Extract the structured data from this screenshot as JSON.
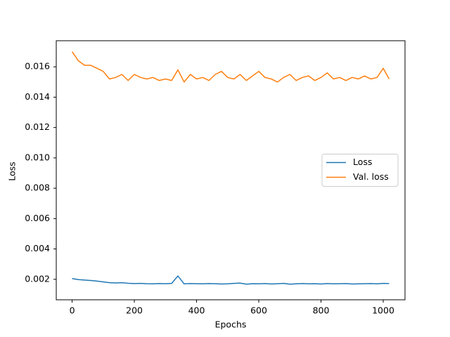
{
  "chart_data": {
    "type": "line",
    "xlabel": "Epochs",
    "ylabel": "Loss",
    "x": [
      0,
      20,
      40,
      60,
      80,
      100,
      120,
      140,
      160,
      180,
      200,
      220,
      240,
      260,
      280,
      300,
      320,
      340,
      360,
      380,
      400,
      420,
      440,
      460,
      480,
      500,
      520,
      540,
      560,
      580,
      600,
      620,
      640,
      660,
      680,
      700,
      720,
      740,
      760,
      780,
      800,
      820,
      840,
      860,
      880,
      900,
      920,
      940,
      960,
      980,
      1000,
      1019
    ],
    "series": [
      {
        "name": "Loss",
        "color": "#1f77b4",
        "values": [
          0.00205,
          0.00198,
          0.00195,
          0.00192,
          0.00188,
          0.00183,
          0.00178,
          0.00176,
          0.00178,
          0.00174,
          0.00172,
          0.00173,
          0.00171,
          0.0017,
          0.00172,
          0.00171,
          0.00173,
          0.00222,
          0.0017,
          0.00172,
          0.00171,
          0.0017,
          0.00172,
          0.00171,
          0.00169,
          0.0017,
          0.00173,
          0.00175,
          0.00168,
          0.00171,
          0.0017,
          0.00172,
          0.00169,
          0.00171,
          0.00173,
          0.00168,
          0.0017,
          0.00172,
          0.0017,
          0.00171,
          0.00169,
          0.00172,
          0.0017,
          0.00171,
          0.00172,
          0.00169,
          0.0017,
          0.00171,
          0.00172,
          0.0017,
          0.00173,
          0.00172
        ]
      },
      {
        "name": "Val. loss",
        "color": "#ff7f0e",
        "values": [
          0.017,
          0.0164,
          0.0161,
          0.0161,
          0.0159,
          0.0157,
          0.0152,
          0.0153,
          0.0155,
          0.0151,
          0.0155,
          0.0153,
          0.0152,
          0.0153,
          0.0151,
          0.0152,
          0.0151,
          0.0158,
          0.015,
          0.0155,
          0.0152,
          0.0153,
          0.0151,
          0.0155,
          0.0157,
          0.0153,
          0.0152,
          0.0155,
          0.0151,
          0.0154,
          0.0157,
          0.0153,
          0.0152,
          0.015,
          0.0153,
          0.0155,
          0.0151,
          0.0153,
          0.0154,
          0.0151,
          0.0153,
          0.0156,
          0.0152,
          0.0153,
          0.0151,
          0.0153,
          0.0152,
          0.0154,
          0.0152,
          0.0153,
          0.0159,
          0.0152
        ]
      }
    ],
    "xlim": [
      -51,
      1070
    ],
    "ylim": [
      0.00065,
      0.01772
    ],
    "xticks": [
      0,
      200,
      400,
      600,
      800,
      1000
    ],
    "yticks": [
      0.002,
      0.004,
      0.006,
      {
        "value": 0.01,
        "label": "0.010"
      },
      0.008,
      0.012,
      0.014,
      0.016
    ],
    "grid": false,
    "legend": "center right"
  }
}
